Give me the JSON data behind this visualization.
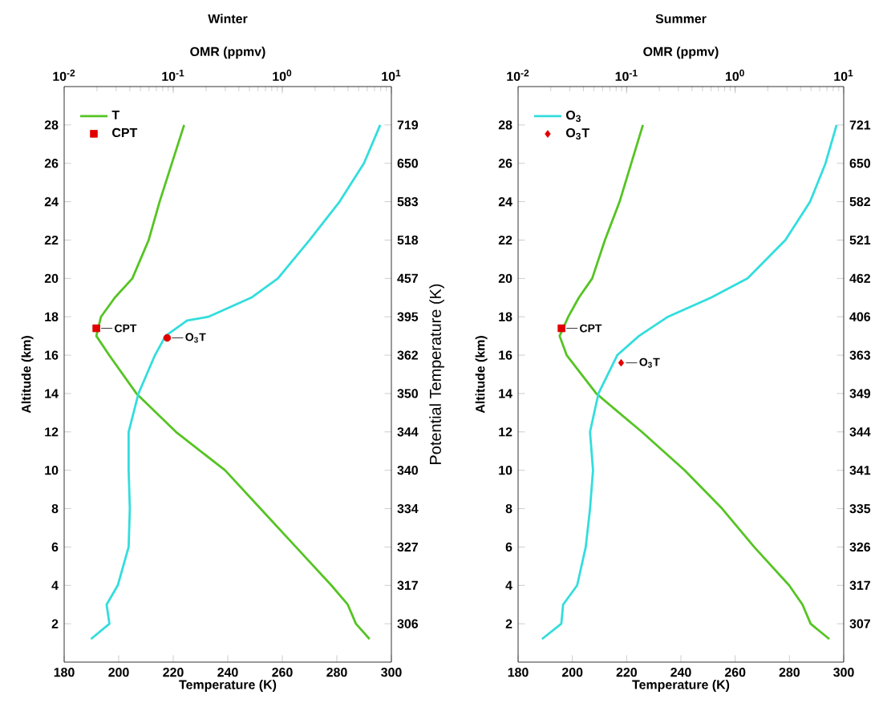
{
  "chart_data": [
    {
      "type": "line",
      "title": "Winter",
      "xlabel": "Temperature (K)",
      "x2label": "OMR (ppmv)",
      "ylabel": "Altitude (km)",
      "y2label": "Potential Temperature (K)",
      "log": "x2",
      "legend": "top left",
      "xlim": [
        180,
        300
      ],
      "xticks": [
        180,
        200,
        220,
        240,
        260,
        280,
        300
      ],
      "x2lim": [
        0.01,
        10
      ],
      "x2ticks": [
        {
          "value": 0.01,
          "label": "10$^{-2}$"
        },
        {
          "value": 0.1,
          "label": "10$^{-1}$"
        },
        {
          "value": 1,
          "label": "10$^{0}$"
        },
        {
          "value": 10,
          "label": "10$^{1}$"
        }
      ],
      "ylim": [
        0,
        30
      ],
      "yticks": [
        2,
        4,
        6,
        8,
        10,
        12,
        14,
        16,
        18,
        20,
        22,
        24,
        26,
        28
      ],
      "y2_categories": [
        "719",
        "650",
        "583",
        "518",
        "457",
        "395",
        "362",
        "350",
        "344",
        "340",
        "334",
        "327",
        "317",
        "306"
      ],
      "series": [
        {
          "name": "T",
          "type": "line",
          "color": "#55c423",
          "x": [
            292,
            287,
            284,
            278,
            265,
            252,
            239,
            221,
            206.5,
            196.5,
            191.8,
            193.5,
            198.6,
            205,
            211,
            215,
            224
          ],
          "values": [
            1.2,
            2,
            3,
            4,
            6,
            8,
            10,
            12,
            14,
            16,
            17,
            18,
            19,
            20,
            22,
            24,
            28
          ]
        },
        {
          "type": "line",
          "axis": "x2",
          "color": "#33dddd",
          "x": [
            0.0176,
            0.026,
            0.0245,
            0.031,
            0.039,
            0.04,
            0.039,
            0.039,
            0.048,
            0.068,
            0.085,
            0.134,
            0.21,
            0.52,
            0.91,
            1.78,
            3.35,
            5.6,
            7.9
          ],
          "values": [
            1.2,
            2,
            3,
            4,
            6,
            8,
            10,
            12,
            14,
            16,
            17,
            17.8,
            18,
            19,
            20,
            22,
            24,
            26,
            28
          ]
        },
        {
          "name": "CPT",
          "type": "scatter",
          "marker": "square",
          "color": "#e00000",
          "x": [
            191.8
          ],
          "values": [
            17.4
          ]
        },
        {
          "type": "scatter",
          "axis": "x2",
          "marker": "circle",
          "color": "#e00000",
          "x": [
            0.088
          ],
          "values": [
            16.9
          ]
        }
      ],
      "annotations": [
        {
          "text": "CPT",
          "x": 191.8,
          "y": 17.4
        },
        "O$_{3}$T"
      ]
    },
    {
      "type": "line",
      "title": "Summer",
      "xlabel": "Temperature (K)",
      "x2label": "OMR (ppmv)",
      "ylabel": "Altitude (km)",
      "log": "x2",
      "legend": "top left",
      "xlim": [
        180,
        300
      ],
      "xticks": [
        180,
        200,
        220,
        240,
        260,
        280,
        300
      ],
      "x2lim": [
        0.01,
        10
      ],
      "x2ticks": [
        {
          "value": 0.01,
          "label": "10$^{-2}$"
        },
        {
          "value": 0.1,
          "label": "10$^{-1}$"
        },
        {
          "value": 1,
          "label": "10$^{0}$"
        },
        {
          "value": 10,
          "label": "10$^{1}$"
        }
      ],
      "ylim": [
        0,
        30
      ],
      "yticks": [
        2,
        4,
        6,
        8,
        10,
        12,
        14,
        16,
        18,
        20,
        22,
        24,
        26,
        28
      ],
      "y2_categories": [
        "721",
        "650",
        "582",
        "521",
        "462",
        "406",
        "363",
        "349",
        "344",
        "341",
        "335",
        "326",
        "317",
        "307"
      ],
      "series": [
        {
          "type": "line",
          "color": "#55c423",
          "x": [
            294.7,
            287.8,
            284.8,
            279.9,
            267,
            255.2,
            241.4,
            225.6,
            208.8,
            197.9,
            195.3,
            198.5,
            202.4,
            207.3,
            212,
            217.4,
            226
          ],
          "values": [
            1.2,
            2,
            3,
            4,
            6,
            8,
            10,
            12,
            14,
            16,
            17,
            18,
            19,
            20,
            22,
            24,
            28
          ]
        },
        {
          "name": "O$_{3}$",
          "type": "line",
          "axis": "x2",
          "color": "#33dddd",
          "x": [
            0.0166,
            0.025,
            0.026,
            0.035,
            0.042,
            0.046,
            0.049,
            0.046,
            0.055,
            0.082,
            0.13,
            0.24,
            0.6,
            1.3,
            2.9,
            4.9,
            6.8,
            8.6
          ],
          "values": [
            1.2,
            2,
            3,
            4,
            6,
            8,
            10,
            12,
            14,
            16,
            17,
            18,
            19,
            20,
            22,
            24,
            26,
            28
          ]
        },
        {
          "type": "scatter",
          "marker": "square",
          "color": "#e00000",
          "x": [
            196
          ],
          "values": [
            17.4
          ]
        },
        {
          "name": "O$_{3}$T",
          "type": "scatter",
          "axis": "x2",
          "marker": "diamond",
          "color": "#e00000",
          "x": [
            0.089
          ],
          "values": [
            15.6
          ]
        }
      ],
      "annotations": [
        {
          "text": "CPT",
          "x": 196,
          "y": 17.4
        },
        "O$_{3}$T"
      ]
    }
  ]
}
